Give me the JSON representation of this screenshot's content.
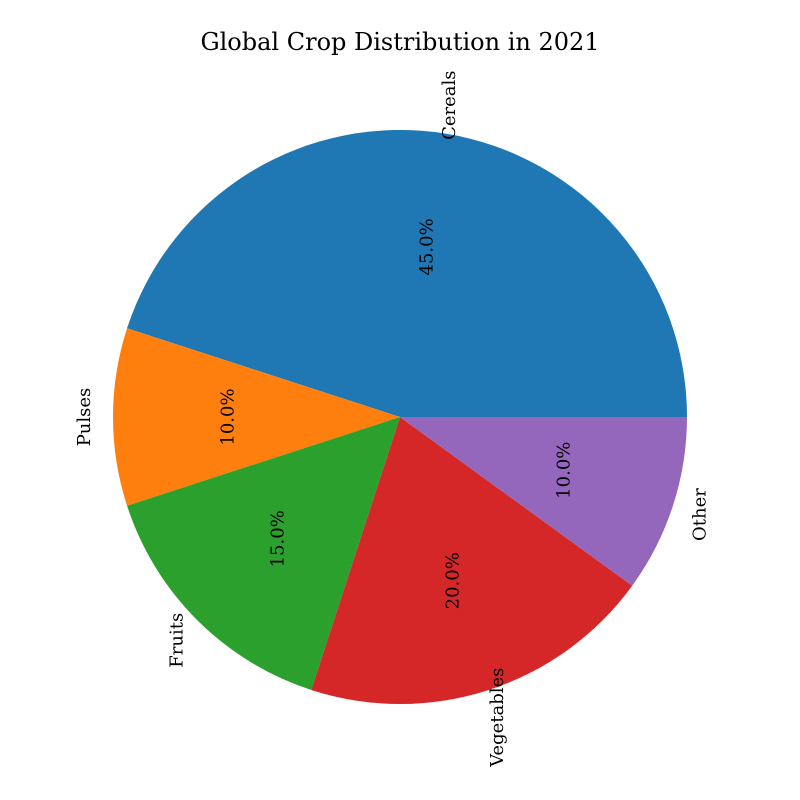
{
  "chart_data": {
    "type": "pie",
    "title": "Global Crop Distribution in 2021",
    "categories": [
      "Cereals",
      "Pulses",
      "Fruits",
      "Vegetables",
      "Other"
    ],
    "values": [
      45.0,
      10.0,
      15.0,
      20.0,
      10.0
    ],
    "value_labels": [
      "45.0%",
      "10.0%",
      "15.0%",
      "20.0%",
      "10.0%"
    ],
    "colors": [
      "#1f77b4",
      "#ff7f0e",
      "#2ca02c",
      "#d62728",
      "#9467bd"
    ],
    "start_angle_deg": 0,
    "direction": "counterclockwise",
    "label_rotation": "vertical",
    "legend": "none"
  }
}
